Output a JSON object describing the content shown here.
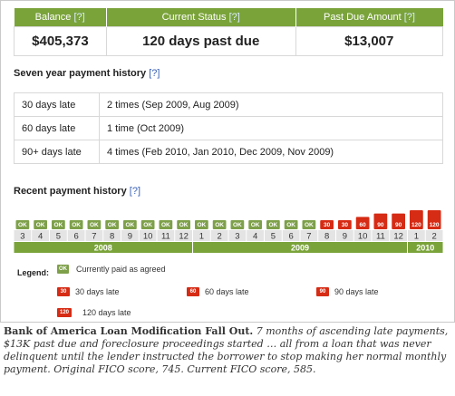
{
  "summary": {
    "help": "[?]",
    "headers": [
      "Balance",
      "Current Status",
      "Past Due Amount"
    ],
    "values": [
      "$405,373",
      "120 days past due",
      "$13,007"
    ]
  },
  "history": {
    "title": "Seven year payment history",
    "help": "[?]",
    "rows": [
      {
        "label": "30 days late",
        "value": "2 times (Sep 2009, Aug 2009)"
      },
      {
        "label": "60 days late",
        "value": "1 time (Oct 2009)"
      },
      {
        "label": "90+ days late",
        "value": "4 times (Feb 2010, Jan 2010, Dec 2009, Nov 2009)"
      }
    ]
  },
  "recent": {
    "title": "Recent payment history",
    "help": "[?]"
  },
  "chart_data": {
    "type": "bar",
    "categories": [
      "3",
      "4",
      "5",
      "6",
      "7",
      "8",
      "9",
      "10",
      "11",
      "12",
      "1",
      "2",
      "3",
      "4",
      "5",
      "6",
      "7",
      "8",
      "9",
      "10",
      "11",
      "12",
      "1",
      "2"
    ],
    "values": [
      0,
      0,
      0,
      0,
      0,
      0,
      0,
      0,
      0,
      0,
      0,
      0,
      0,
      0,
      0,
      0,
      0,
      30,
      30,
      60,
      90,
      90,
      120,
      120
    ],
    "labels": [
      "OK",
      "OK",
      "OK",
      "OK",
      "OK",
      "OK",
      "OK",
      "OK",
      "OK",
      "OK",
      "OK",
      "OK",
      "OK",
      "OK",
      "OK",
      "OK",
      "OK",
      "30",
      "30",
      "60",
      "90",
      "90",
      "120",
      "120"
    ],
    "years": [
      {
        "label": "2008",
        "start": 0,
        "count": 10
      },
      {
        "label": "2009",
        "start": 10,
        "count": 12
      },
      {
        "label": "2010",
        "start": 22,
        "count": 2
      }
    ],
    "colors": {
      "ok": "#7ea04a",
      "late": "#d62b14",
      "year": "#7aa33a",
      "month_bg": "#e4e4e4"
    }
  },
  "legend": {
    "title": "Legend:",
    "items": [
      {
        "chip": "OK",
        "text": "Currently paid as agreed"
      },
      {
        "chip": "30",
        "text": "30 days late"
      },
      {
        "chip": "60",
        "text": "60 days late"
      },
      {
        "chip": "90",
        "text": "90 days late"
      },
      {
        "chip": "120",
        "text": "120 days late"
      }
    ]
  },
  "caption": {
    "bold": "Bank of America Loan Modification Fall Out.",
    "italic": "7 months of ascending late payments, $13K past due and foreclosure proceedings started … all from a loan that was never delinquent until the lender instructed the borrower to stop making her normal monthly payment.  Original FICO score, 745. Current FICO score, 585."
  }
}
